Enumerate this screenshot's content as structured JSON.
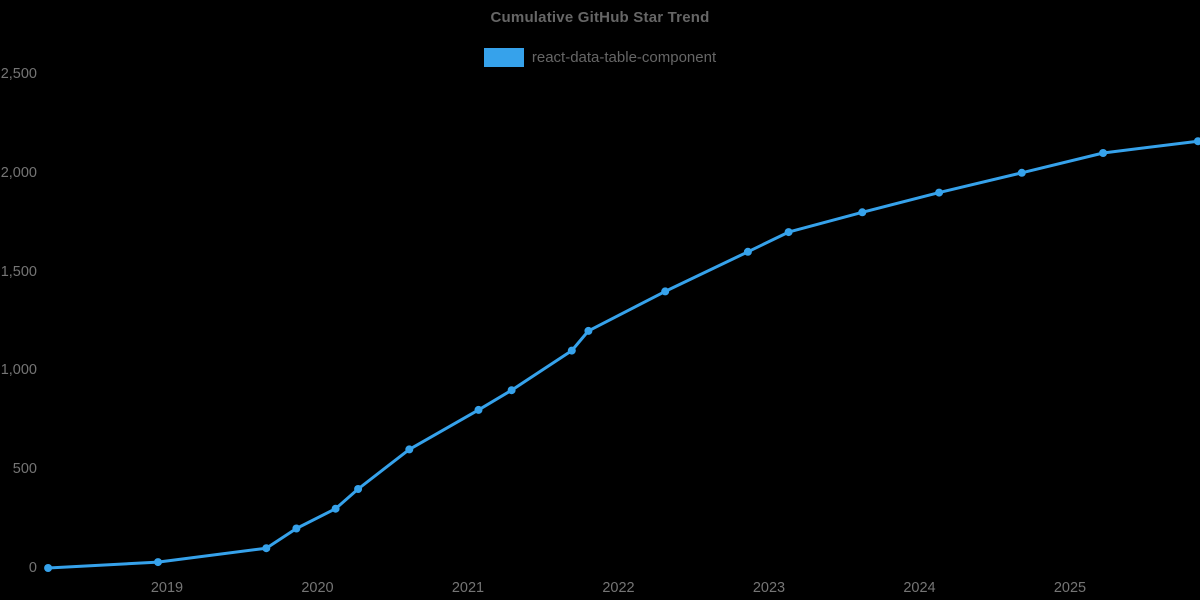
{
  "chart": {
    "title": "Cumulative GitHub Star Trend",
    "legend_label": "react-data-table-component"
  },
  "colors": {
    "series": "#36a2eb",
    "title_text": "#666666",
    "tick_text": "#757575",
    "background": "#000000"
  },
  "chart_data": {
    "type": "line",
    "title": "Cumulative GitHub Star Trend",
    "series": [
      {
        "name": "react-data-table-component",
        "color": "#36a2eb",
        "x_dates": [
          "2018-03",
          "2018-12",
          "2019-09",
          "2019-11",
          "2020-02",
          "2020-04",
          "2020-08",
          "2021-01",
          "2021-04",
          "2021-09",
          "2021-11",
          "2022-04",
          "2022-11",
          "2023-02",
          "2023-08",
          "2024-02",
          "2024-09",
          "2025-03",
          "2025-11"
        ],
        "x": [
          2018.21,
          2018.94,
          2019.66,
          2019.86,
          2020.12,
          2020.27,
          2020.61,
          2021.07,
          2021.29,
          2021.69,
          2021.8,
          2022.31,
          2022.86,
          2023.13,
          2023.62,
          2024.13,
          2024.68,
          2025.22,
          2025.85
        ],
        "values": [
          0,
          30,
          100,
          200,
          300,
          400,
          600,
          800,
          900,
          1100,
          1200,
          1400,
          1600,
          1700,
          1800,
          1900,
          2000,
          2100,
          2160
        ]
      }
    ],
    "xlabel": "",
    "ylabel": "",
    "x_ticks": {
      "values": [
        2019,
        2020,
        2021,
        2022,
        2023,
        2024,
        2025
      ],
      "labels": [
        "2019",
        "2020",
        "2021",
        "2022",
        "2023",
        "2024",
        "2025"
      ]
    },
    "y_ticks": {
      "values": [
        0,
        500,
        1000,
        1500,
        2000,
        2500
      ],
      "labels": [
        "0",
        "500",
        "1,000",
        "1,500",
        "2,000",
        "2,500"
      ]
    },
    "xlim": [
      2018.0,
      2025.87
    ],
    "ylim": [
      0,
      2500
    ],
    "grid": false,
    "axis_lines": false,
    "legend_position": "top-center",
    "marker": "circle",
    "line_width": 3,
    "marker_radius": 4
  }
}
